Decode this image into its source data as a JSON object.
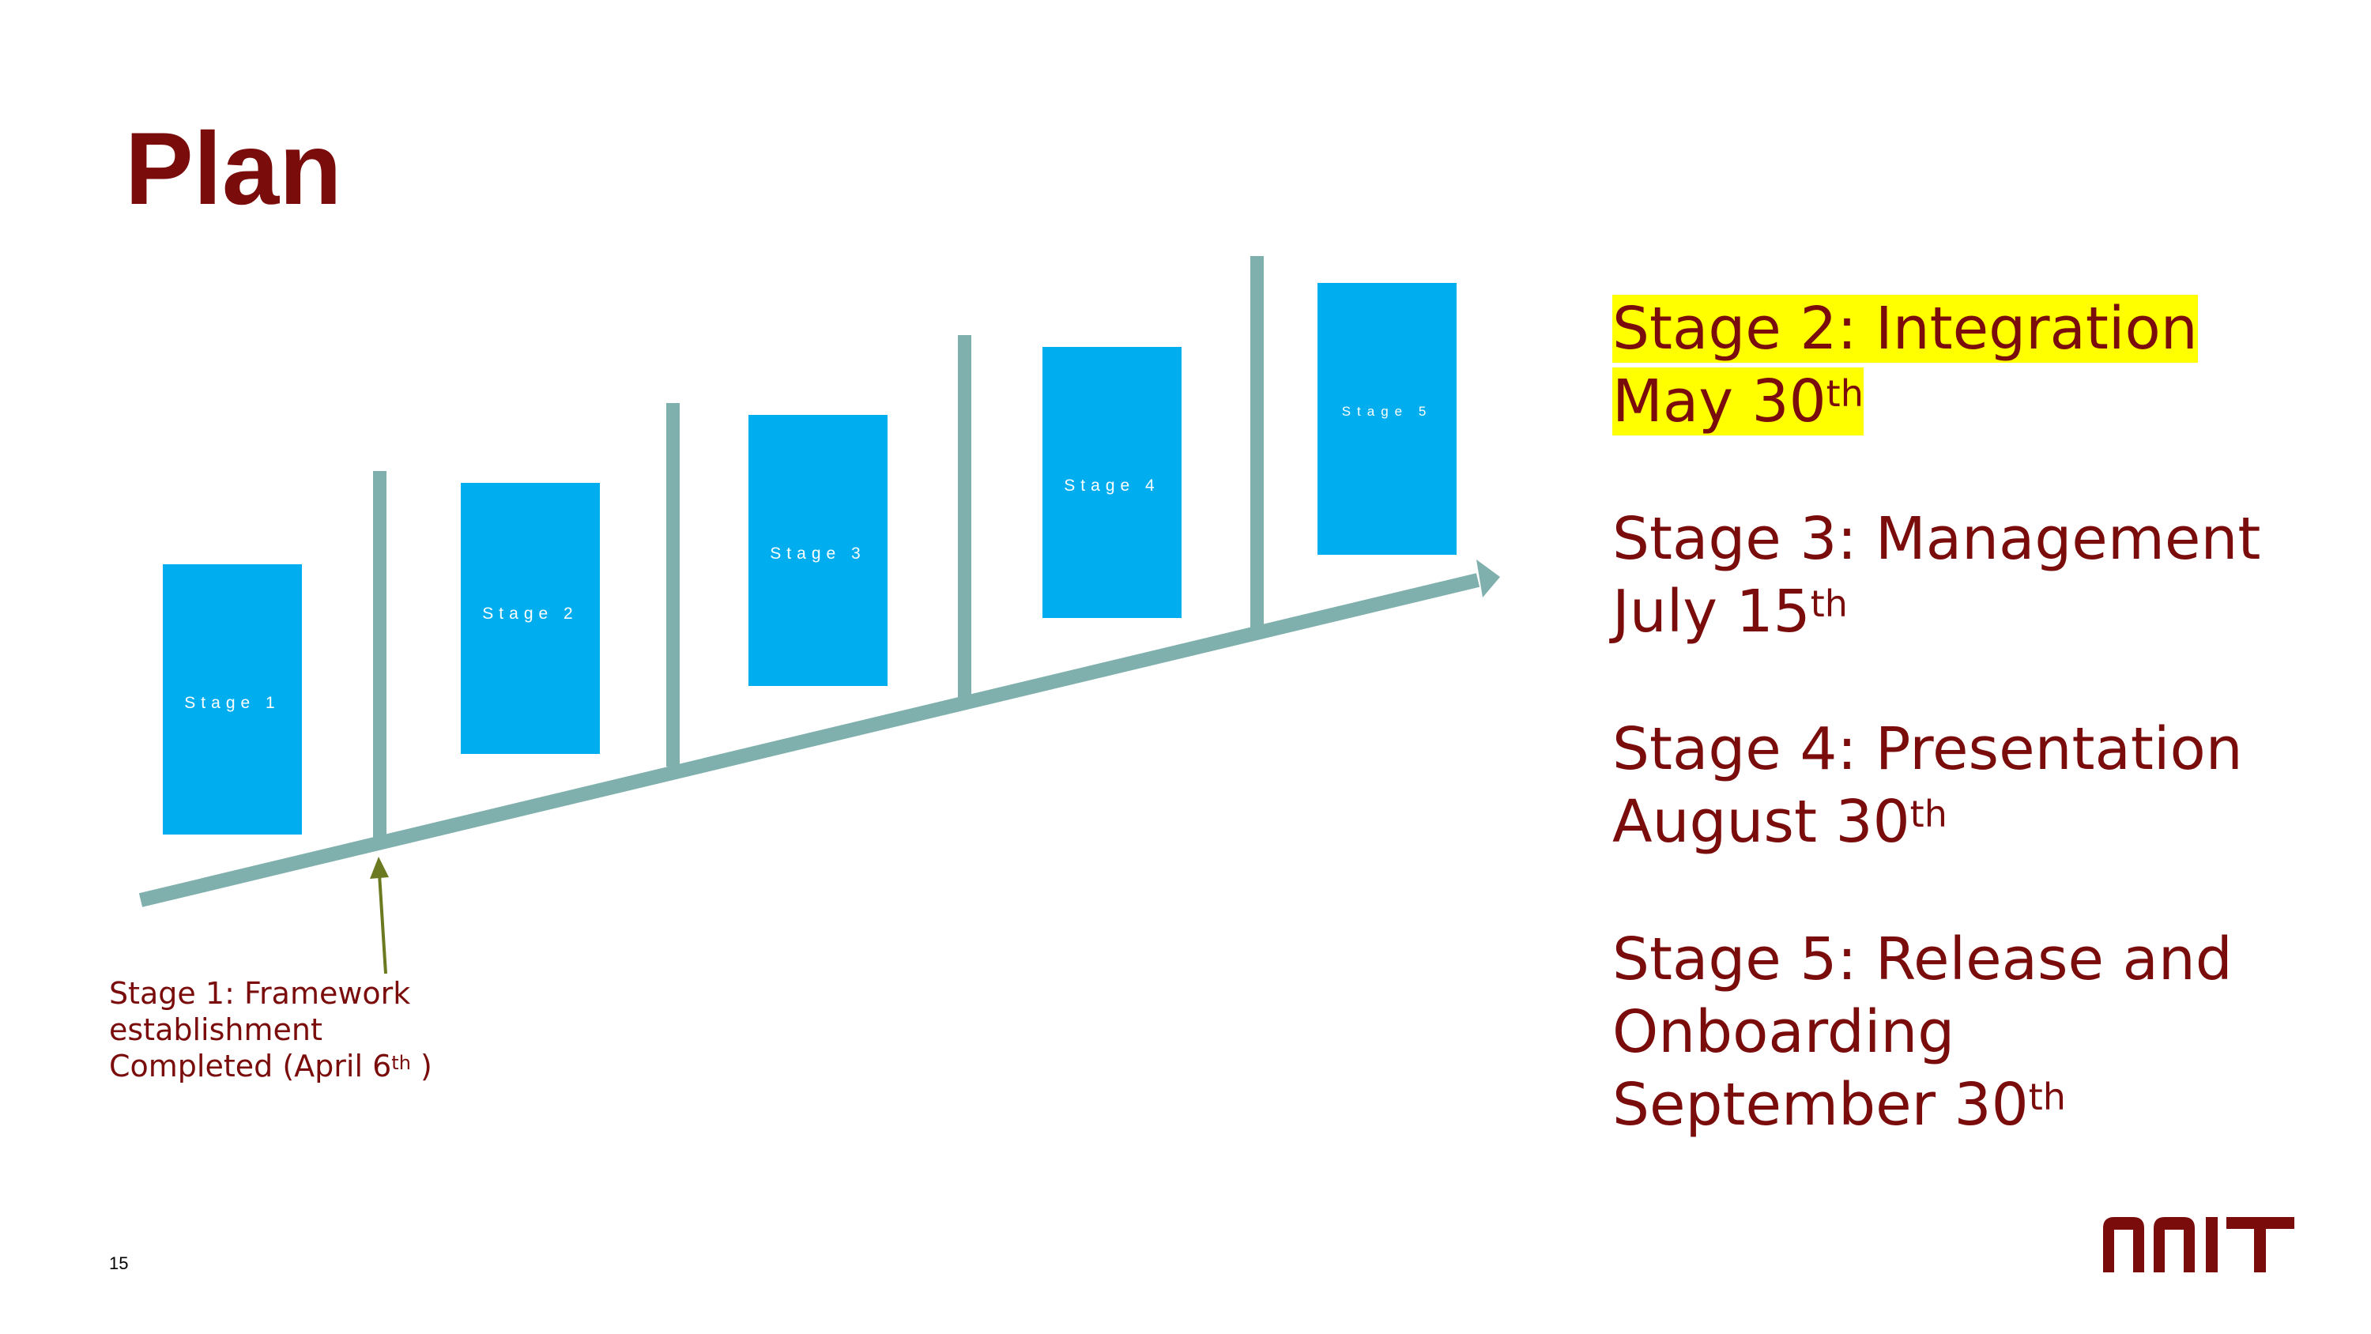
{
  "slide": {
    "title": "Plan",
    "page_number": "15",
    "brand_color": "#7a0c0c",
    "logo_text": "NNIT"
  },
  "diagram": {
    "stage_boxes": [
      {
        "label": "Stage 1"
      },
      {
        "label": "Stage 2"
      },
      {
        "label": "Stage 3"
      },
      {
        "label": "Stage 4"
      },
      {
        "label": "Stage 5"
      }
    ],
    "box_color": "#00aeef",
    "axis_color": "#7fb0ad",
    "pointer_color": "#6b7a20"
  },
  "stage1_note": {
    "line1": "Stage 1: Framework",
    "line2": "establishment",
    "line3_prefix": "Completed (April 6",
    "line3_sup": "th",
    "line3_suffix": " )"
  },
  "milestones": [
    {
      "title": "Stage 2: Integration",
      "date": "May 30",
      "sup": "th",
      "highlighted": true
    },
    {
      "title": "Stage 3: Management",
      "date": "July 15",
      "sup": "th",
      "highlighted": false
    },
    {
      "title": "Stage 4: Presentation",
      "date": "August 30",
      "sup": "th",
      "highlighted": false
    },
    {
      "title": "Stage 5: Release and",
      "title2": "Onboarding",
      "date": "September 30",
      "sup": "th",
      "highlighted": false
    }
  ]
}
